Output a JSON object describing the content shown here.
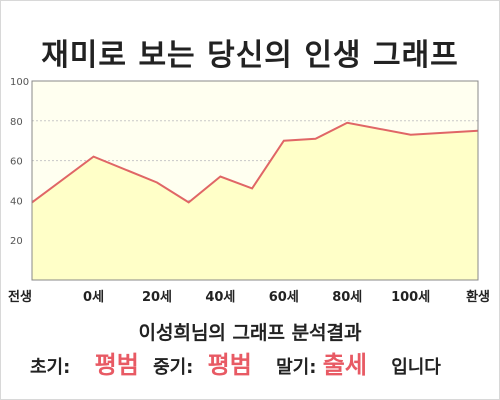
{
  "title": "재미로 보는 당신의 인생 그래프",
  "colors": {
    "line": "#e06666",
    "fill": "#ffffc8",
    "plot_bg": "#fffff0",
    "grid": "#c8c8c8",
    "accent": "#e85a64"
  },
  "chart_data": {
    "type": "area",
    "title": "",
    "xlabel": "",
    "ylabel": "",
    "x_ticks": [
      "전생",
      "0세",
      "20세",
      "40세",
      "60세",
      "80세",
      "100세",
      "환생"
    ],
    "y_ticks": [
      "20",
      "40",
      "60",
      "80",
      "100"
    ],
    "ylim": [
      0,
      100
    ],
    "grid": true,
    "series": [
      {
        "values": [
          {
            "x": "전생",
            "y": 39
          },
          {
            "x": "0세",
            "y": 62
          },
          {
            "x": "20세",
            "y": 49
          },
          {
            "x": "30세",
            "y": 39
          },
          {
            "x": "40세",
            "y": 52
          },
          {
            "x": "50세",
            "y": 46
          },
          {
            "x": "60세",
            "y": 70
          },
          {
            "x": "70세",
            "y": 71
          },
          {
            "x": "80세",
            "y": 79
          },
          {
            "x": "100세",
            "y": 73
          },
          {
            "x": "환생",
            "y": 75
          }
        ]
      }
    ]
  },
  "result": {
    "title": "이성희님의 그래프 분석결과",
    "early_label": "초기:",
    "early_value": "평범",
    "middle_label": "중기:",
    "middle_value": "평범",
    "late_label": "말기:",
    "late_value": "출세",
    "ending": "입니다"
  }
}
